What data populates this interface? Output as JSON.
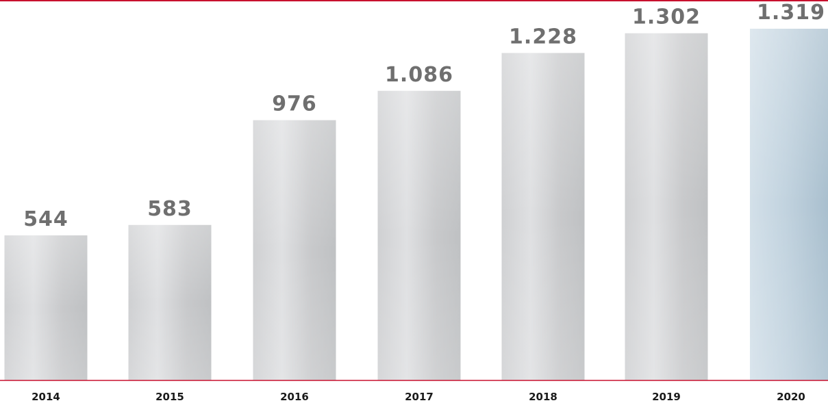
{
  "chart_data": {
    "type": "bar",
    "title": "",
    "xlabel": "",
    "ylabel": "",
    "categories": [
      "2014",
      "2015",
      "2016",
      "2017",
      "2018",
      "2019",
      "2020"
    ],
    "values": [
      544,
      583,
      976,
      1086,
      1228,
      1302,
      1319
    ],
    "data_labels": [
      "544",
      "583",
      "976",
      "1.086",
      "1.228",
      "1.302",
      "1.319"
    ],
    "ylim": [
      0,
      1400
    ],
    "grid": false,
    "legend": "none",
    "colors": {
      "bar_gray": "#bfc1c3",
      "bar_gray_light": "#dcdddf",
      "bar_blue": "#b4c7d4",
      "bar_blue_light": "#d3e0e9",
      "axis_line": "#c8102e",
      "value_text": "#6f6f6f",
      "category_text": "#1a1a1a"
    }
  }
}
